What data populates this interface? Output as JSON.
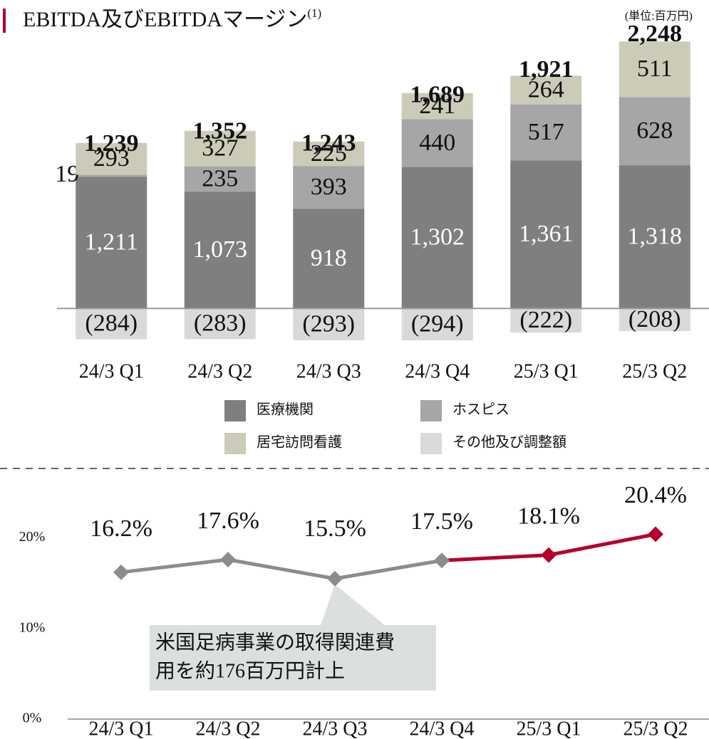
{
  "title": "EBITDA及びEBITDAマージン",
  "title_note": "(1)",
  "unit": "(単位:百万円)",
  "chart_data": [
    {
      "type": "stacked_bar",
      "categories": [
        "24/3 Q1",
        "24/3 Q2",
        "24/3 Q3",
        "24/3 Q4",
        "25/3 Q1",
        "25/3 Q2"
      ],
      "series": [
        {
          "name": "医療機関",
          "color": "#7f7f7f",
          "label_color": "#ffffff",
          "values": [
            1211,
            1073,
            918,
            1302,
            1361,
            1318
          ],
          "value_labels": [
            "1,211",
            "1,073",
            "918",
            "1,302",
            "1,361",
            "1,318"
          ]
        },
        {
          "name": "ホスピス",
          "color": "#a6a6a6",
          "label_color": "#111111",
          "values": [
            19,
            235,
            393,
            440,
            517,
            628
          ]
        },
        {
          "name": "居宅訪問看護",
          "color": "#cbcbb8",
          "label_color": "#111111",
          "values": [
            293,
            327,
            225,
            241,
            264,
            511
          ]
        },
        {
          "name": "その他及び調整額",
          "color": "#d9d9d9",
          "label_color": "#111111",
          "values": [
            -284,
            -283,
            -293,
            -294,
            -222,
            -208
          ],
          "value_labels": [
            "(284)",
            "(283)",
            "(293)",
            "(294)",
            "(222)",
            "(208)"
          ]
        }
      ],
      "totals": [
        1239,
        1352,
        1243,
        1689,
        1921,
        2248
      ],
      "total_labels": [
        "1,239",
        "1,352",
        "1,243",
        "1,689",
        "1,921",
        "2,248"
      ],
      "ylim": [
        -300,
        2400
      ]
    },
    {
      "type": "line",
      "categories": [
        "24/3 Q1",
        "24/3 Q2",
        "24/3 Q3",
        "24/3 Q4",
        "25/3 Q1",
        "25/3 Q2"
      ],
      "values": [
        16.2,
        17.6,
        15.5,
        17.5,
        18.1,
        20.4
      ],
      "value_labels": [
        "16.2%",
        "17.6%",
        "15.5%",
        "17.5%",
        "18.1%",
        "20.4%"
      ],
      "colors": [
        "#8c8c8c",
        "#8c8c8c",
        "#8c8c8c",
        "#8c8c8c",
        "#b5002b",
        "#b5002b"
      ],
      "ylim": [
        0,
        22
      ],
      "yticks": [
        {
          "value": 0,
          "label": "0%"
        },
        {
          "value": 10,
          "label": "10%"
        },
        {
          "value": 20,
          "label": "20%"
        }
      ],
      "annotation": [
        "米国足病事業の取得関連費",
        "用を約176百万円計上"
      ]
    }
  ]
}
